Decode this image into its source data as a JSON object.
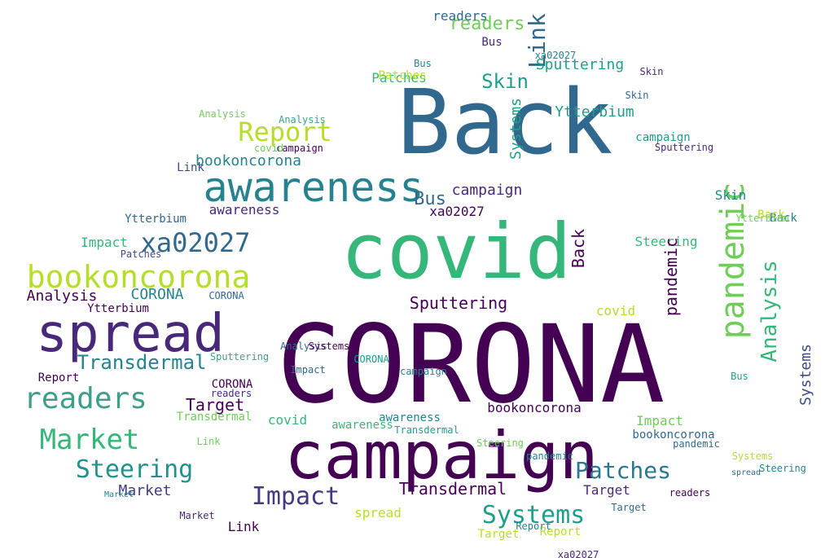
{
  "words": [
    {
      "text": "CORONA",
      "color": "#440154"
    },
    {
      "text": "Back",
      "color": "#31688e"
    },
    {
      "text": "covid",
      "color": "#35b779"
    },
    {
      "text": "campaign",
      "color": "#440154"
    },
    {
      "text": "spread",
      "color": "#482878"
    },
    {
      "text": "awareness",
      "color": "#26828e"
    },
    {
      "text": "pandemic",
      "color": "#6ece58"
    },
    {
      "text": "bookoncorona",
      "color": "#b5de2b"
    },
    {
      "text": "readers",
      "color": "#3e9e8a"
    },
    {
      "text": "Market",
      "color": "#35b779"
    },
    {
      "text": "Impact",
      "color": "#443a83"
    },
    {
      "text": "Systems",
      "color": "#1f9e89"
    },
    {
      "text": "Steering",
      "color": "#21918c"
    },
    {
      "text": "Patches",
      "color": "#2a788e"
    },
    {
      "text": "Report",
      "color": "#b5de2b"
    },
    {
      "text": "xa02027",
      "color": "#31688e"
    },
    {
      "text": "Link",
      "color": "#31688e"
    },
    {
      "text": "Skin",
      "color": "#1f9e89"
    },
    {
      "text": "Bus",
      "color": "#31688e"
    },
    {
      "text": "Ytterbium",
      "color": "#1f9e89"
    },
    {
      "text": "Sputtering",
      "color": "#1f9e89"
    },
    {
      "text": "Transdermal",
      "color": "#26828e"
    },
    {
      "text": "Analysis",
      "color": "#35b779"
    },
    {
      "text": "Target",
      "color": "#440154"
    },
    {
      "text": "readers",
      "color": "#6ece58"
    },
    {
      "text": "Transdermal",
      "color": "#440154"
    },
    {
      "text": "campaign",
      "color": "#482878"
    },
    {
      "text": "Analysis",
      "color": "#440154"
    },
    {
      "text": "CORONA",
      "color": "#26828e"
    },
    {
      "text": "Market",
      "color": "#443a83"
    },
    {
      "text": "Steering",
      "color": "#35b779"
    },
    {
      "text": "Patches",
      "color": "#35b779"
    },
    {
      "text": "Systems",
      "color": "#3e4989"
    },
    {
      "text": "Sputtering",
      "color": "#440154"
    },
    {
      "text": "awareness",
      "color": "#482878"
    },
    {
      "text": "xa02027",
      "color": "#440154"
    },
    {
      "text": "Impact",
      "color": "#35b779"
    },
    {
      "text": "bookoncorona",
      "color": "#26828e"
    },
    {
      "text": "Ytterbium",
      "color": "#440154"
    },
    {
      "text": "Skin",
      "color": "#26828e"
    },
    {
      "text": "Bus",
      "color": "#482878"
    },
    {
      "text": "readers",
      "color": "#31688e"
    },
    {
      "text": "Report",
      "color": "#440154"
    },
    {
      "text": "Link",
      "color": "#3e4989"
    },
    {
      "text": "pandemic",
      "color": "#440154"
    },
    {
      "text": "covid",
      "color": "#b5de2b"
    },
    {
      "text": "Back",
      "color": "#26828e"
    },
    {
      "text": "CORONA",
      "color": "#440154"
    },
    {
      "text": "Target",
      "color": "#482878"
    },
    {
      "text": "spread",
      "color": "#b5de2b"
    },
    {
      "text": "Analysis",
      "color": "#3e9e8a"
    },
    {
      "text": "Systems",
      "color": "#1f9e89"
    },
    {
      "text": "Back",
      "color": "#440154"
    },
    {
      "text": "Market",
      "color": "#482878"
    },
    {
      "text": "campaign",
      "color": "#1f9e89"
    },
    {
      "text": "Patches",
      "color": "#b5de2b"
    },
    {
      "text": "Ytterbium",
      "color": "#31688e"
    },
    {
      "text": "Sputtering",
      "color": "#3e9e8a"
    },
    {
      "text": "covid",
      "color": "#35b779"
    },
    {
      "text": "awareness",
      "color": "#26828e"
    },
    {
      "text": "Skin",
      "color": "#31688e"
    },
    {
      "text": "Bus",
      "color": "#26828e"
    },
    {
      "text": "Link",
      "color": "#440154"
    },
    {
      "text": "Impact",
      "color": "#6ece58"
    },
    {
      "text": "readers",
      "color": "#482878"
    },
    {
      "text": "Target",
      "color": "#31688e"
    },
    {
      "text": "Report",
      "color": "#b5de2b"
    },
    {
      "text": "Steering",
      "color": "#26828e"
    },
    {
      "text": "xa02027",
      "color": "#26828e"
    },
    {
      "text": "bookoncorona",
      "color": "#440154"
    },
    {
      "text": "Transdermal",
      "color": "#1f9e89"
    },
    {
      "text": "pandemic",
      "color": "#31688e"
    },
    {
      "text": "Systems",
      "color": "#b5de2b"
    },
    {
      "text": "Analysis",
      "color": "#31688e"
    },
    {
      "text": "CORONA",
      "color": "#31688e"
    },
    {
      "text": "campaign",
      "color": "#440154"
    },
    {
      "text": "spread",
      "color": "#31688e"
    },
    {
      "text": "covid",
      "color": "#6ece58"
    },
    {
      "text": "Market",
      "color": "#26828e"
    },
    {
      "text": "Patches",
      "color": "#3e4989"
    },
    {
      "text": "Steering",
      "color": "#6ece58"
    },
    {
      "text": "readers",
      "color": "#440154"
    },
    {
      "text": "awareness",
      "color": "#35b779"
    },
    {
      "text": "Impact",
      "color": "#31688e"
    },
    {
      "text": "Target",
      "color": "#b5de2b"
    },
    {
      "text": "Link",
      "color": "#6ece58"
    },
    {
      "text": "Skin",
      "color": "#482878"
    },
    {
      "text": "Bus",
      "color": "#1f9e89"
    },
    {
      "text": "Ytterbium",
      "color": "#6ece58"
    },
    {
      "text": "Back",
      "color": "#b5de2b"
    },
    {
      "text": "xa02027",
      "color": "#482878"
    },
    {
      "text": "bookoncorona",
      "color": "#31688e"
    },
    {
      "text": "Sputtering",
      "color": "#482878"
    },
    {
      "text": "Report",
      "color": "#26828e"
    },
    {
      "text": "Transdermal",
      "color": "#6ece58"
    },
    {
      "text": "pandemic",
      "color": "#26828e"
    },
    {
      "text": "Analysis",
      "color": "#6ece58"
    },
    {
      "text": "Systems",
      "color": "#440154"
    },
    {
      "text": "CORONA",
      "color": "#1f9e89"
    },
    {
      "text": "campaign",
      "color": "#26828e"
    }
  ]
}
